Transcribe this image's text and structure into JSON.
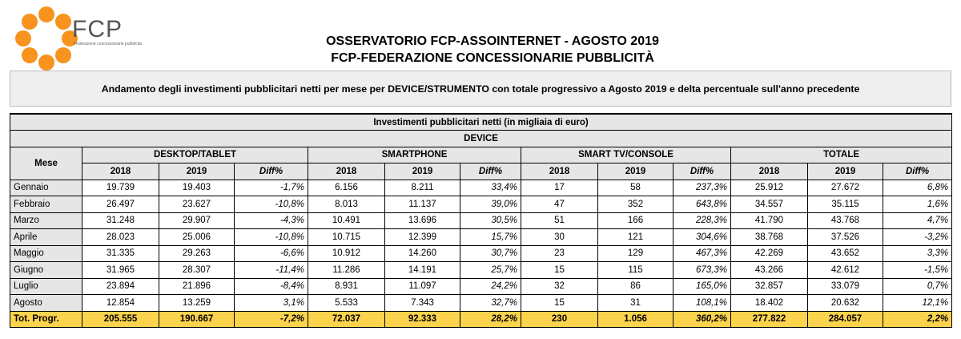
{
  "header": {
    "logo_name": "FCP",
    "logo_tagline": "Federazione concessionarie pubblicità",
    "title_line1": "OSSERVATORIO FCP-ASSOINTERNET - AGOSTO 2019",
    "title_line2": "FCP-FEDERAZIONE CONCESSIONARIE PUBBLICITÀ",
    "subtitle": "Andamento degli investimenti pubblicitari netti per mese per DEVICE/STRUMENTO con totale progressivo a Agosto 2019 e delta percentuale sull'anno precedente"
  },
  "colors": {
    "logo_orange": "#f7931e",
    "total_row": "#fcd34d",
    "header_bg": "#e6e6e6"
  },
  "table": {
    "caption": "Investimenti pubblicitari netti (in migliaia di euro)",
    "device_label": "DEVICE",
    "mese_label": "Mese",
    "groups": [
      "DESKTOP/TABLET",
      "SMARTPHONE",
      "SMART TV/CONSOLE",
      "TOTALE"
    ],
    "col_2018": "2018",
    "col_2019": "2019",
    "col_diff": "Diff%",
    "rows": [
      {
        "mese": "Gennaio",
        "v": [
          "19.739",
          "19.403",
          "-1,7%",
          "6.156",
          "8.211",
          "33,4%",
          "17",
          "58",
          "237,3%",
          "25.912",
          "27.672",
          "6,8%"
        ]
      },
      {
        "mese": "Febbraio",
        "v": [
          "26.497",
          "23.627",
          "-10,8%",
          "8.013",
          "11.137",
          "39,0%",
          "47",
          "352",
          "643,8%",
          "34.557",
          "35.115",
          "1,6%"
        ]
      },
      {
        "mese": "Marzo",
        "v": [
          "31.248",
          "29.907",
          "-4,3%",
          "10.491",
          "13.696",
          "30,5%",
          "51",
          "166",
          "228,3%",
          "41.790",
          "43.768",
          "4,7%"
        ]
      },
      {
        "mese": "Aprile",
        "v": [
          "28.023",
          "25.006",
          "-10,8%",
          "10.715",
          "12.399",
          "15,7%",
          "30",
          "121",
          "304,6%",
          "38.768",
          "37.526",
          "-3,2%"
        ]
      },
      {
        "mese": "Maggio",
        "v": [
          "31.335",
          "29.263",
          "-6,6%",
          "10.912",
          "14.260",
          "30,7%",
          "23",
          "129",
          "467,3%",
          "42.269",
          "43.652",
          "3,3%"
        ]
      },
      {
        "mese": "Giugno",
        "v": [
          "31.965",
          "28.307",
          "-11,4%",
          "11.286",
          "14.191",
          "25,7%",
          "15",
          "115",
          "673,3%",
          "43.266",
          "42.612",
          "-1,5%"
        ]
      },
      {
        "mese": "Luglio",
        "v": [
          "23.894",
          "21.896",
          "-8,4%",
          "8.931",
          "11.097",
          "24,2%",
          "32",
          "86",
          "165,0%",
          "32.857",
          "33.079",
          "0,7%"
        ]
      },
      {
        "mese": "Agosto",
        "v": [
          "12.854",
          "13.259",
          "3,1%",
          "5.533",
          "7.343",
          "32,7%",
          "15",
          "31",
          "108,1%",
          "18.402",
          "20.632",
          "12,1%"
        ]
      }
    ],
    "total": {
      "mese": "Tot. Progr.",
      "v": [
        "205.555",
        "190.667",
        "-7,2%",
        "72.037",
        "92.333",
        "28,2%",
        "230",
        "1.056",
        "360,2%",
        "277.822",
        "284.057",
        "2,2%"
      ]
    }
  }
}
